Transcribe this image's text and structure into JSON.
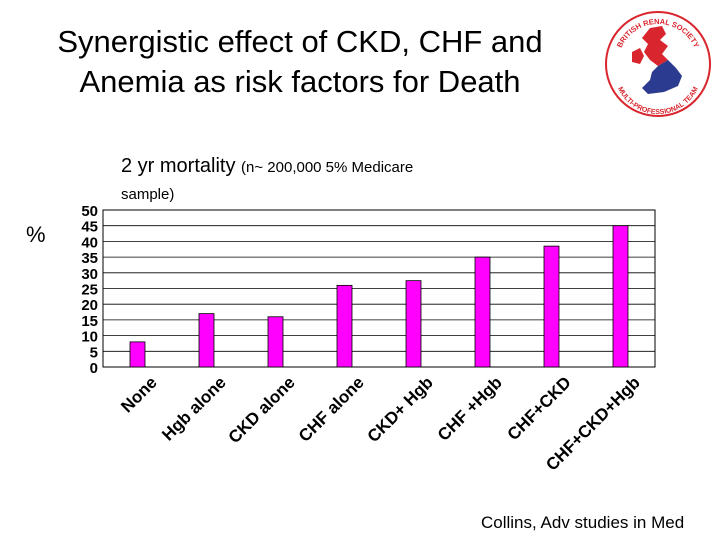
{
  "slide": {
    "title_line1": "Synergistic effect of CKD, CHF and",
    "title_line2": "Anemia as risk factors for Death",
    "subtitle_main": "2 yr mortality",
    "subtitle_paren": "(n~ 200,000 5% Medicare",
    "subtitle_line2": "sample)",
    "y_symbol": "%",
    "citation": "Collins, Adv studies in Med"
  },
  "logo": {
    "name": "british-renal-society-logo",
    "text_top": "BRITISH RENAL SOCIETY",
    "text_bottom": "MULTI-PROFESSIONAL TEAM",
    "colors": {
      "ring": "#d9262e",
      "map_red": "#d9262e",
      "map_blue": "#2b3b8f"
    }
  },
  "chart_data": {
    "type": "bar",
    "categories": [
      "None",
      "Hgb alone",
      "CKD alone",
      "CHF alone",
      "CKD+ Hgb",
      "CHF +Hgb",
      "CHF+CKD",
      "CHF+CKD+Hgb"
    ],
    "values": [
      8,
      17,
      16,
      26,
      27.5,
      35,
      38.5,
      45
    ],
    "ylim": [
      0,
      50
    ],
    "yticks": [
      0,
      5,
      10,
      15,
      20,
      25,
      30,
      35,
      40,
      45,
      50
    ],
    "grid": "horizontal",
    "bar_color": "#ff00ff",
    "legend": "none"
  }
}
